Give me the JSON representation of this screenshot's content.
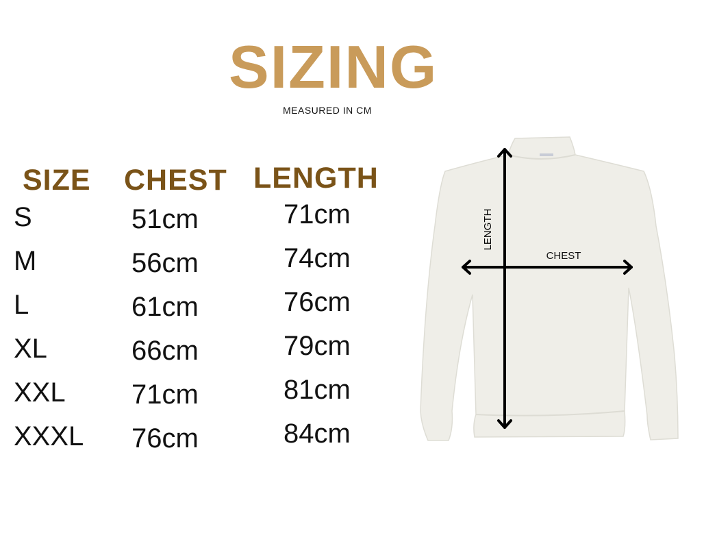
{
  "title": "SIZING",
  "subtitle": "MEASURED IN CM",
  "colors": {
    "title": "#C99B5A",
    "headers": "#7A5318",
    "text": "#111111",
    "garment": "#EFEEE8"
  },
  "table": {
    "headers": [
      "SIZE",
      "CHEST",
      "LENGTH"
    ],
    "rows": [
      {
        "size": "S",
        "chest": "51cm",
        "length": "71cm"
      },
      {
        "size": "M",
        "chest": "56cm",
        "length": "74cm"
      },
      {
        "size": "L",
        "chest": "61cm",
        "length": "76cm"
      },
      {
        "size": "XL",
        "chest": "66cm",
        "length": "79cm"
      },
      {
        "size": "XXL",
        "chest": "71cm",
        "length": "81cm"
      },
      {
        "size": "XXXL",
        "chest": "76cm",
        "length": "84cm"
      }
    ]
  },
  "diagram": {
    "length_label": "LENGTH",
    "chest_label": "CHEST",
    "garment": "white crewneck sweatshirt"
  }
}
